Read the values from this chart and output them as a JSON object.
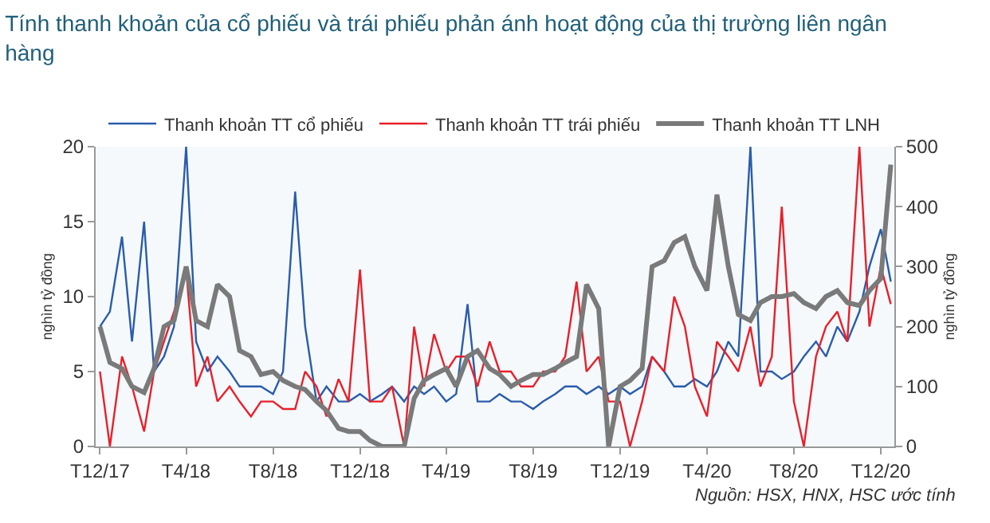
{
  "chart_data": {
    "type": "line",
    "title": "Tính thanh khoản của cổ phiếu và trái phiếu phản ánh hoạt động của thị trường liên ngân hàng",
    "ylabel": "nghìn tỷ đồng",
    "y2label": "nghìn tỷ đồng",
    "annotations": [
      "Nguồn: HSX, HNX, HSC ước tính"
    ],
    "x": [
      "2017-12-01",
      "2017-12-15",
      "2018-01-01",
      "2018-01-15",
      "2018-02-01",
      "2018-02-15",
      "2018-03-01",
      "2018-03-15",
      "2018-04-01",
      "2018-04-15",
      "2018-05-01",
      "2018-05-15",
      "2018-06-01",
      "2018-06-15",
      "2018-07-01",
      "2018-07-15",
      "2018-08-01",
      "2018-08-15",
      "2018-09-01",
      "2018-09-15",
      "2018-10-01",
      "2018-10-15",
      "2018-11-01",
      "2018-11-15",
      "2018-12-01",
      "2018-12-15",
      "2019-01-01",
      "2019-01-15",
      "2019-02-01",
      "2019-02-15",
      "2019-03-01",
      "2019-03-15",
      "2019-04-01",
      "2019-04-15",
      "2019-05-01",
      "2019-05-15",
      "2019-06-01",
      "2019-06-15",
      "2019-07-01",
      "2019-07-15",
      "2019-08-01",
      "2019-08-15",
      "2019-09-01",
      "2019-09-15",
      "2019-10-01",
      "2019-10-15",
      "2019-11-01",
      "2019-11-15",
      "2019-12-01",
      "2019-12-15",
      "2020-01-01",
      "2020-01-15",
      "2020-02-01",
      "2020-02-15",
      "2020-03-01",
      "2020-03-15",
      "2020-04-01",
      "2020-04-15",
      "2020-05-01",
      "2020-05-15",
      "2020-06-01",
      "2020-06-15",
      "2020-07-01",
      "2020-07-15",
      "2020-08-01",
      "2020-08-15",
      "2020-09-01",
      "2020-09-15",
      "2020-10-01",
      "2020-10-15",
      "2020-11-01",
      "2020-11-15",
      "2020-12-01",
      "2020-12-15"
    ],
    "series": [
      {
        "name": "Thanh khoản TT cổ phiếu",
        "color": "#2a5caa",
        "values": [
          8,
          9,
          14,
          7,
          15,
          5,
          6,
          8,
          20,
          7,
          5,
          6,
          5,
          4,
          4,
          4,
          3.5,
          5,
          17,
          8,
          3,
          4,
          3,
          3,
          3.5,
          3,
          3.5,
          4,
          3,
          4,
          3.5,
          4,
          3,
          3.5,
          9.5,
          3,
          3,
          3.5,
          3,
          3,
          2.5,
          3,
          3.5,
          4,
          4,
          3.5,
          4,
          3.5,
          4,
          3.5,
          4,
          6,
          5,
          4,
          4,
          4.5,
          4,
          5,
          7,
          6,
          20,
          5,
          5,
          4.5,
          5,
          6,
          7,
          6,
          8,
          7,
          9,
          12,
          14.5,
          11
        ]
      },
      {
        "name": "Thanh khoản TT trái phiếu",
        "color": "#e8202a",
        "values": [
          5,
          0,
          6,
          4,
          1,
          5,
          7,
          9,
          11.8,
          4,
          6,
          3,
          4,
          3,
          2,
          3,
          3,
          2.5,
          2.5,
          5,
          4,
          2,
          4.5,
          3,
          11.8,
          3,
          3,
          4,
          0,
          8,
          4,
          7.5,
          5,
          6,
          6,
          4,
          7,
          5,
          5,
          4,
          4,
          5,
          5,
          6,
          11,
          5,
          6,
          3,
          3,
          0,
          3,
          6,
          5,
          10,
          8,
          4,
          2,
          7,
          6,
          5,
          8,
          4,
          6,
          16,
          3,
          0,
          6,
          8,
          9,
          7,
          20,
          8,
          12,
          9.5
        ]
      },
      {
        "name": "Thanh khoản TT LNH",
        "color": "#7a7a7a",
        "axis": "y2",
        "values": [
          200,
          140,
          130,
          100,
          90,
          130,
          200,
          210,
          300,
          210,
          200,
          270,
          250,
          160,
          150,
          120,
          125,
          110,
          100,
          95,
          75,
          60,
          30,
          25,
          25,
          10,
          0,
          0,
          0,
          80,
          110,
          120,
          130,
          100,
          150,
          160,
          130,
          120,
          100,
          110,
          120,
          120,
          130,
          140,
          150,
          270,
          230,
          0,
          100,
          110,
          130,
          300,
          310,
          340,
          350,
          300,
          260,
          420,
          300,
          220,
          210,
          240,
          250,
          250,
          255,
          240,
          230,
          250,
          260,
          240,
          235,
          260,
          280,
          470
        ]
      }
    ],
    "xlim": [
      "2017-11-25",
      "2020-12-20"
    ],
    "xticks": [
      {
        "value": "2017-12-01",
        "label": "T12/17"
      },
      {
        "value": "2018-04-01",
        "label": "T4/18"
      },
      {
        "value": "2018-08-01",
        "label": "T8/18"
      },
      {
        "value": "2018-12-01",
        "label": "T12/18"
      },
      {
        "value": "2019-04-01",
        "label": "T4/19"
      },
      {
        "value": "2019-08-01",
        "label": "T8/19"
      },
      {
        "value": "2019-12-01",
        "label": "T12/19"
      },
      {
        "value": "2020-04-01",
        "label": "T4/20"
      },
      {
        "value": "2020-08-01",
        "label": "T8/20"
      },
      {
        "value": "2020-12-01",
        "label": "T12/20"
      }
    ],
    "ylim": [
      0,
      20
    ],
    "yticks": [
      0,
      5,
      10,
      15,
      20
    ],
    "y2lim": [
      0,
      500
    ],
    "y2ticks": [
      0,
      100,
      200,
      300,
      400,
      500
    ],
    "grid": false,
    "legend": "top",
    "marker": "none",
    "line_style": "solid"
  }
}
